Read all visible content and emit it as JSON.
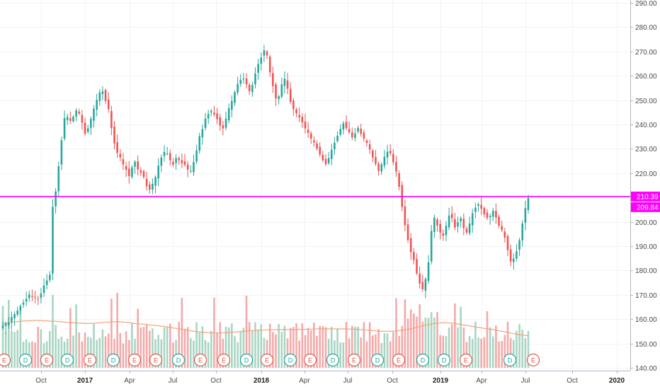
{
  "chart_data": {
    "type": "candlestick",
    "y_axis": {
      "range": [
        140,
        290
      ],
      "ticks": [
        "140.00",
        "150.00",
        "160.00",
        "170.00",
        "180.00",
        "190.00",
        "200.00",
        "210.00",
        "220.00",
        "230.00",
        "240.00",
        "250.00",
        "260.00",
        "270.00",
        "280.00",
        "290.00"
      ],
      "position": "right"
    },
    "x_axis": {
      "labels": [
        {
          "text": "Oct",
          "year": false
        },
        {
          "text": "2017",
          "year": true
        },
        {
          "text": "Apr",
          "year": false
        },
        {
          "text": "Jul",
          "year": false
        },
        {
          "text": "Oct",
          "year": false
        },
        {
          "text": "2018",
          "year": true
        },
        {
          "text": "Apr",
          "year": false
        },
        {
          "text": "Jul",
          "year": false
        },
        {
          "text": "Oct",
          "year": false
        },
        {
          "text": "2019",
          "year": true
        },
        {
          "text": "Apr",
          "year": false
        },
        {
          "text": "Jul",
          "year": false
        },
        {
          "text": "Oct",
          "year": false
        },
        {
          "text": "2020",
          "year": true
        }
      ]
    },
    "horizontal_line": {
      "value": 210.39,
      "label": "210.39",
      "color": "#ff00ff"
    },
    "last_price": {
      "value": 209.84,
      "label": "209.84",
      "color": "#ff00ff"
    },
    "colors": {
      "up": "#26a69a",
      "down": "#ef5350",
      "volume_up": "#a8d5c2",
      "volume_down": "#f4a9a8",
      "volume_ma": "#f5a27a"
    },
    "series_close": [
      157.5,
      158.2,
      158.6,
      160.8,
      162.1,
      163.5,
      165.2,
      166.8,
      168.3,
      170.1,
      169.4,
      168.9,
      168.2,
      170.5,
      173.8,
      175.9,
      178.2,
      206.2,
      212.5,
      222.8,
      233.5,
      242.6,
      243.1,
      241.5,
      243.2,
      245.8,
      244.5,
      240.8,
      236.2,
      238.4,
      242.3,
      246.5,
      250.1,
      253.2,
      253.6,
      249.7,
      246.3,
      238.5,
      232.2,
      228.4,
      226.5,
      223.6,
      221.4,
      218.8,
      222.4,
      224.7,
      221.5,
      220.2,
      218.4,
      214.6,
      213.2,
      215.6,
      218.4,
      223.1,
      226.4,
      228.7,
      228.1,
      225.3,
      223.5,
      226.2,
      225.4,
      224.1,
      223.4,
      221.4,
      220.9,
      224.6,
      229.3,
      235.2,
      238.1,
      242.4,
      244.3,
      245.5,
      244.1,
      242.2,
      239.5,
      238.4,
      242.4,
      246.7,
      249.6,
      253.3,
      256.7,
      258.4,
      258.9,
      256.5,
      253.7,
      256.2,
      260.9,
      264.8,
      267.5,
      270.5,
      268.4,
      261.4,
      255.8,
      250.7,
      251.6,
      256.5,
      258.8,
      254.7,
      249.3,
      246.3,
      244.6,
      242.9,
      240.9,
      238.4,
      236.5,
      234.2,
      232.6,
      230.1,
      227.7,
      225.3,
      223.7,
      226.2,
      229.6,
      232.5,
      235.4,
      238.2,
      240.4,
      238.5,
      236.8,
      234.7,
      236.3,
      238.6,
      236.1,
      234.2,
      232.4,
      229.7,
      226.5,
      223.8,
      220.9,
      223.6,
      226.7,
      228.8,
      228.2,
      224.5,
      220.7,
      214.4,
      206.1,
      198.6,
      192.5,
      187.5,
      184.3,
      178.8,
      174.6,
      172.3,
      176.5,
      183.4,
      196.2,
      201.7,
      198.5,
      195.6,
      194.3,
      198.4,
      202.6,
      201.5,
      197.6,
      199.8,
      201.5,
      197.4,
      195.6,
      199.3,
      203.5,
      205.8,
      207.2,
      205.4,
      203.1,
      201.6,
      202.4,
      204.5,
      201.8,
      198.4,
      196.6,
      193.5,
      188.4,
      183.7,
      184.9,
      187.9,
      192.4,
      199.3,
      205.6,
      209.8
    ],
    "volume_ma": [
      158.0,
      158.3,
      158.5,
      158.7,
      158.8,
      159.0,
      159.1,
      159.2,
      159.3,
      159.3,
      159.4,
      159.4,
      159.4,
      159.4,
      159.3,
      159.3,
      159.2,
      159.2,
      159.1,
      159.0,
      158.9,
      158.8,
      158.7,
      158.6,
      158.5,
      158.4,
      158.3,
      158.3,
      158.2,
      158.2,
      158.2,
      158.3,
      158.4,
      158.5,
      158.6,
      158.7,
      158.8,
      158.9,
      158.9,
      158.9,
      158.9,
      158.8,
      158.7,
      158.5,
      158.4,
      158.2,
      158.1,
      158.0,
      157.9,
      157.8,
      157.6,
      157.5,
      157.4,
      157.3,
      157.1,
      157.0,
      156.8,
      156.6,
      156.4,
      156.2,
      156.0,
      155.8,
      155.6,
      155.4,
      155.2,
      155.0,
      154.9,
      154.7,
      154.6,
      154.5,
      154.4,
      154.3,
      154.3,
      154.3,
      154.3,
      154.4,
      154.4,
      154.5,
      154.6,
      154.7,
      154.8,
      154.9,
      155.0,
      155.1,
      155.2,
      155.3,
      155.3,
      155.4,
      155.5,
      155.5,
      155.6,
      155.6,
      155.6,
      155.7,
      155.7,
      155.7,
      155.7,
      155.7,
      155.7,
      155.7,
      155.7,
      155.8,
      155.8,
      155.8,
      155.9,
      155.9,
      155.9,
      156.0,
      156.0,
      156.0,
      156.0,
      156.0,
      156.0,
      156.0,
      156.0,
      156.0,
      156.0,
      156.0,
      155.9,
      155.9,
      155.8,
      155.8,
      155.7,
      155.6,
      155.5,
      155.4,
      155.3,
      155.2,
      155.1,
      155.0,
      155.0,
      155.0,
      155.0,
      155.0,
      155.1,
      155.3,
      155.4,
      155.6,
      155.8,
      156.0,
      156.3,
      156.6,
      156.9,
      157.2,
      157.5,
      157.8,
      158.0,
      158.2,
      158.3,
      158.4,
      158.5,
      158.5,
      158.4,
      158.3,
      158.2,
      158.0,
      157.8,
      157.6,
      157.4,
      157.2,
      157.0,
      156.8,
      156.6,
      156.4,
      156.2,
      156.0,
      155.9,
      155.7,
      155.4,
      155.2,
      155.0,
      154.8,
      154.6,
      154.3,
      154.0,
      153.8,
      153.6,
      153.4,
      153.3,
      153.2
    ],
    "events": [
      {
        "label": "E",
        "type": "earnings"
      },
      {
        "label": "D",
        "type": "dividend"
      },
      {
        "label": "E",
        "type": "earnings"
      },
      {
        "label": "D",
        "type": "dividend"
      },
      {
        "label": "E",
        "type": "earnings"
      },
      {
        "label": "D",
        "type": "dividend"
      },
      {
        "label": "E",
        "type": "earnings"
      },
      {
        "label": "E",
        "type": "earnings"
      },
      {
        "label": "D",
        "type": "dividend"
      },
      {
        "label": "E",
        "type": "earnings"
      },
      {
        "label": "E",
        "type": "earnings"
      },
      {
        "label": "D",
        "type": "dividend"
      },
      {
        "label": "E",
        "type": "earnings"
      },
      {
        "label": "D",
        "type": "dividend"
      },
      {
        "label": "E",
        "type": "earnings"
      },
      {
        "label": "D",
        "type": "dividend"
      },
      {
        "label": "E",
        "type": "earnings"
      },
      {
        "label": "D",
        "type": "dividend"
      },
      {
        "label": "E",
        "type": "earnings"
      },
      {
        "label": "D",
        "type": "dividend"
      },
      {
        "label": "D",
        "type": "dividend"
      },
      {
        "label": "E",
        "type": "earnings"
      },
      {
        "label": "D",
        "type": "dividend"
      },
      {
        "label": "E",
        "type": "earnings"
      }
    ]
  }
}
